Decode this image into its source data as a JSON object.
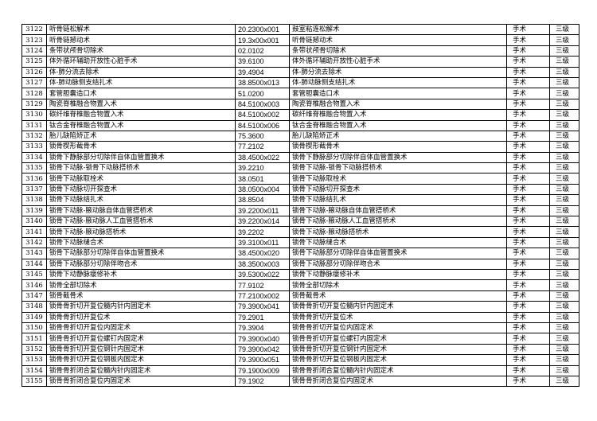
{
  "table": {
    "rows": [
      [
        "3122",
        "听骨链松解术",
        "20.2300x001",
        "鼓室粘连松解术",
        "手术",
        "三级"
      ],
      [
        "3123",
        "听骨链撼动术",
        "19.3x00x001",
        "听骨链撼动术",
        "手术",
        "三级"
      ],
      [
        "3124",
        "条带状颅骨切除术",
        "02.0102",
        "条带状颅骨切除术",
        "手术",
        "三级"
      ],
      [
        "3125",
        "体外循环辅助开放性心脏手术",
        "39.6100",
        "体外循环辅助开放性心脏手术",
        "手术",
        "三级"
      ],
      [
        "3126",
        "体-肺分流去除术",
        "39.4904",
        "体-肺分流去除术",
        "手术",
        "三级"
      ],
      [
        "3127",
        "体-肺动脉侧支结扎术",
        "38.8500x013",
        "体-肺动脉侧支结扎术",
        "手术",
        "三级"
      ],
      [
        "3128",
        "套管胆囊造口术",
        "51.0200",
        "套管胆囊造口术",
        "手术",
        "三级"
      ],
      [
        "3129",
        "陶瓷脊椎融合物置入术",
        "84.5100x003",
        "陶瓷脊椎融合物置入术",
        "手术",
        "三级"
      ],
      [
        "3130",
        "碳纤维脊椎融合物置入术",
        "84.5100x002",
        "碳纤维脊椎融合物置入术",
        "手术",
        "三级"
      ],
      [
        "3131",
        "钛合金脊椎融合物置入术",
        "84.5100x006",
        "钛合金脊椎融合物置入术",
        "手术",
        "三级"
      ],
      [
        "3132",
        "胎儿缺陷矫正术",
        "75.3600",
        "胎儿缺陷矫正术",
        "手术",
        "三级"
      ],
      [
        "3133",
        "锁骨楔形截骨术",
        "77.2102",
        "锁骨楔形截骨术",
        "手术",
        "三级"
      ],
      [
        "3134",
        "锁骨下静脉部分切除伴自体血管置换术",
        "38.4500x022",
        "锁骨下静脉部分切除伴自体血管置换术",
        "手术",
        "三级"
      ],
      [
        "3135",
        "锁骨下动脉-锁骨下动脉搭桥术",
        "39.2210",
        "锁骨下动脉-锁骨下动脉搭桥术",
        "手术",
        "三级"
      ],
      [
        "3136",
        "锁骨下动脉取栓术",
        "38.0501",
        "锁骨下动脉取栓术",
        "手术",
        "三级"
      ],
      [
        "3137",
        "锁骨下动脉切开探查术",
        "38.0500x004",
        "锁骨下动脉切开探查术",
        "手术",
        "三级"
      ],
      [
        "3138",
        "锁骨下动脉结扎术",
        "38.8504",
        "锁骨下动脉结扎术",
        "手术",
        "三级"
      ],
      [
        "3139",
        "锁骨下动脉-腋动脉自体血管搭桥术",
        "39.2200x011",
        "锁骨下动脉-腋动脉自体血管搭桥术",
        "手术",
        "三级"
      ],
      [
        "3140",
        "锁骨下动脉-腋动脉人工血管搭桥术",
        "39.2200x014",
        "锁骨下动脉-腋动脉人工血管搭桥术",
        "手术",
        "三级"
      ],
      [
        "3141",
        "锁骨下动脉-腋动脉搭桥术",
        "39.2202",
        "锁骨下动脉-腋动脉搭桥术",
        "手术",
        "三级"
      ],
      [
        "3142",
        "锁骨下动脉缝合术",
        "39.3100x011",
        "锁骨下动脉缝合术",
        "手术",
        "三级"
      ],
      [
        "3143",
        "锁骨下动脉部分切除伴自体血管置换术",
        "38.4500x020",
        "锁骨下动脉部分切除伴自体血管置换术",
        "手术",
        "三级"
      ],
      [
        "3144",
        "锁骨下动脉部分切除伴吻合术",
        "38.3500x003",
        "锁骨下动脉部分切除伴吻合术",
        "手术",
        "三级"
      ],
      [
        "3145",
        "锁骨下动静脉瘘修补术",
        "39.5300x022",
        "锁骨下动静脉瘘修补术",
        "手术",
        "三级"
      ],
      [
        "3146",
        "锁骨全部切除术",
        "77.9102",
        "锁骨全部切除术",
        "手术",
        "三级"
      ],
      [
        "3147",
        "锁骨截骨术",
        "77.2100x002",
        "锁骨截骨术",
        "手术",
        "三级"
      ],
      [
        "3148",
        "锁骨骨折切开复位髓内针内固定术",
        "79.3900x041",
        "锁骨骨折切开复位髓内针内固定术",
        "手术",
        "三级"
      ],
      [
        "3149",
        "锁骨骨折切开复位术",
        "79.2901",
        "锁骨骨折切开复位术",
        "手术",
        "三级"
      ],
      [
        "3150",
        "锁骨骨折切开复位内固定术",
        "79.3904",
        "锁骨骨折切开复位内固定术",
        "手术",
        "三级"
      ],
      [
        "3151",
        "锁骨骨折切开复位螺钉内固定术",
        "79.3900x040",
        "锁骨骨折切开复位螺钉内固定术",
        "手术",
        "三级"
      ],
      [
        "3152",
        "锁骨骨折切开复位钢针内固定术",
        "79.3900x042",
        "锁骨骨折切开复位钢针内固定术",
        "手术",
        "三级"
      ],
      [
        "3153",
        "锁骨骨折切开复位钢板内固定术",
        "79.3900x051",
        "锁骨骨折切开复位钢板内固定术",
        "手术",
        "三级"
      ],
      [
        "3154",
        "锁骨骨折闭合复位髓内针内固定术",
        "79.1900x009",
        "锁骨骨折闭合复位髓内针内固定术",
        "手术",
        "三级"
      ],
      [
        "3155",
        "锁骨骨折闭合复位内固定术",
        "79.1902",
        "锁骨骨折闭合复位内固定术",
        "手术",
        "三级"
      ]
    ]
  }
}
